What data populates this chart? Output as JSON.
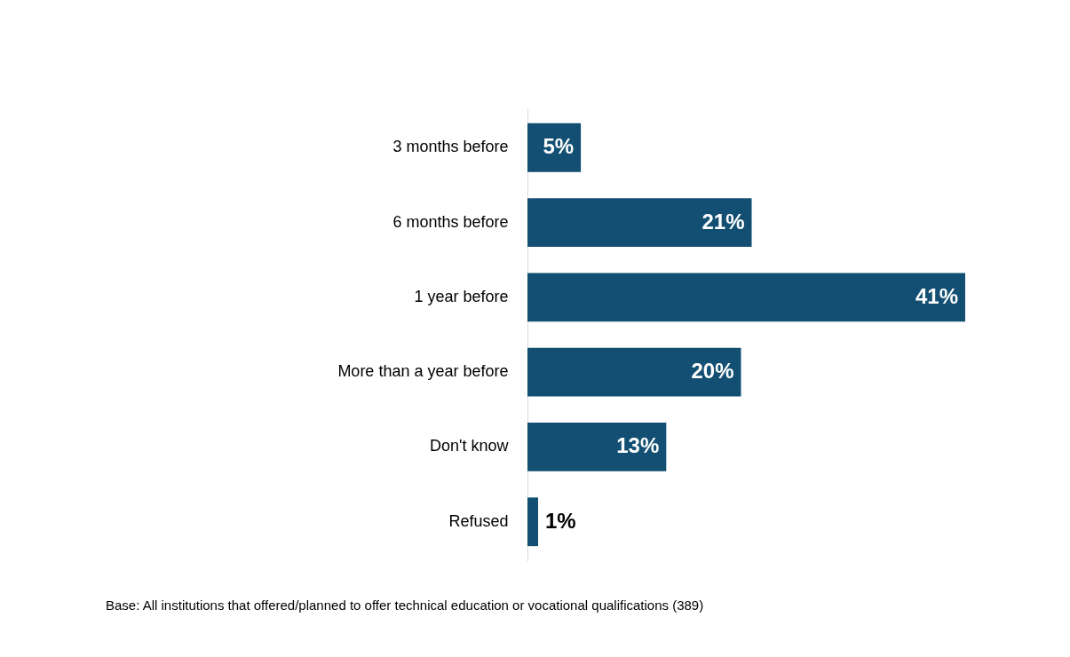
{
  "chart_data": {
    "type": "bar",
    "orientation": "horizontal",
    "categories": [
      "3 months before",
      "6 months before",
      "1 year before",
      "More than a year before",
      "Don't know",
      "Refused"
    ],
    "values": [
      5,
      21,
      41,
      20,
      13,
      1
    ],
    "value_labels": [
      "5%",
      "21%",
      "41%",
      "20%",
      "13%",
      "1%"
    ],
    "color": "#124f72",
    "grid": false,
    "annotations": [
      "Base:  All institutions that offered/planned to offer technical education or vocational qualifications (389)"
    ]
  }
}
